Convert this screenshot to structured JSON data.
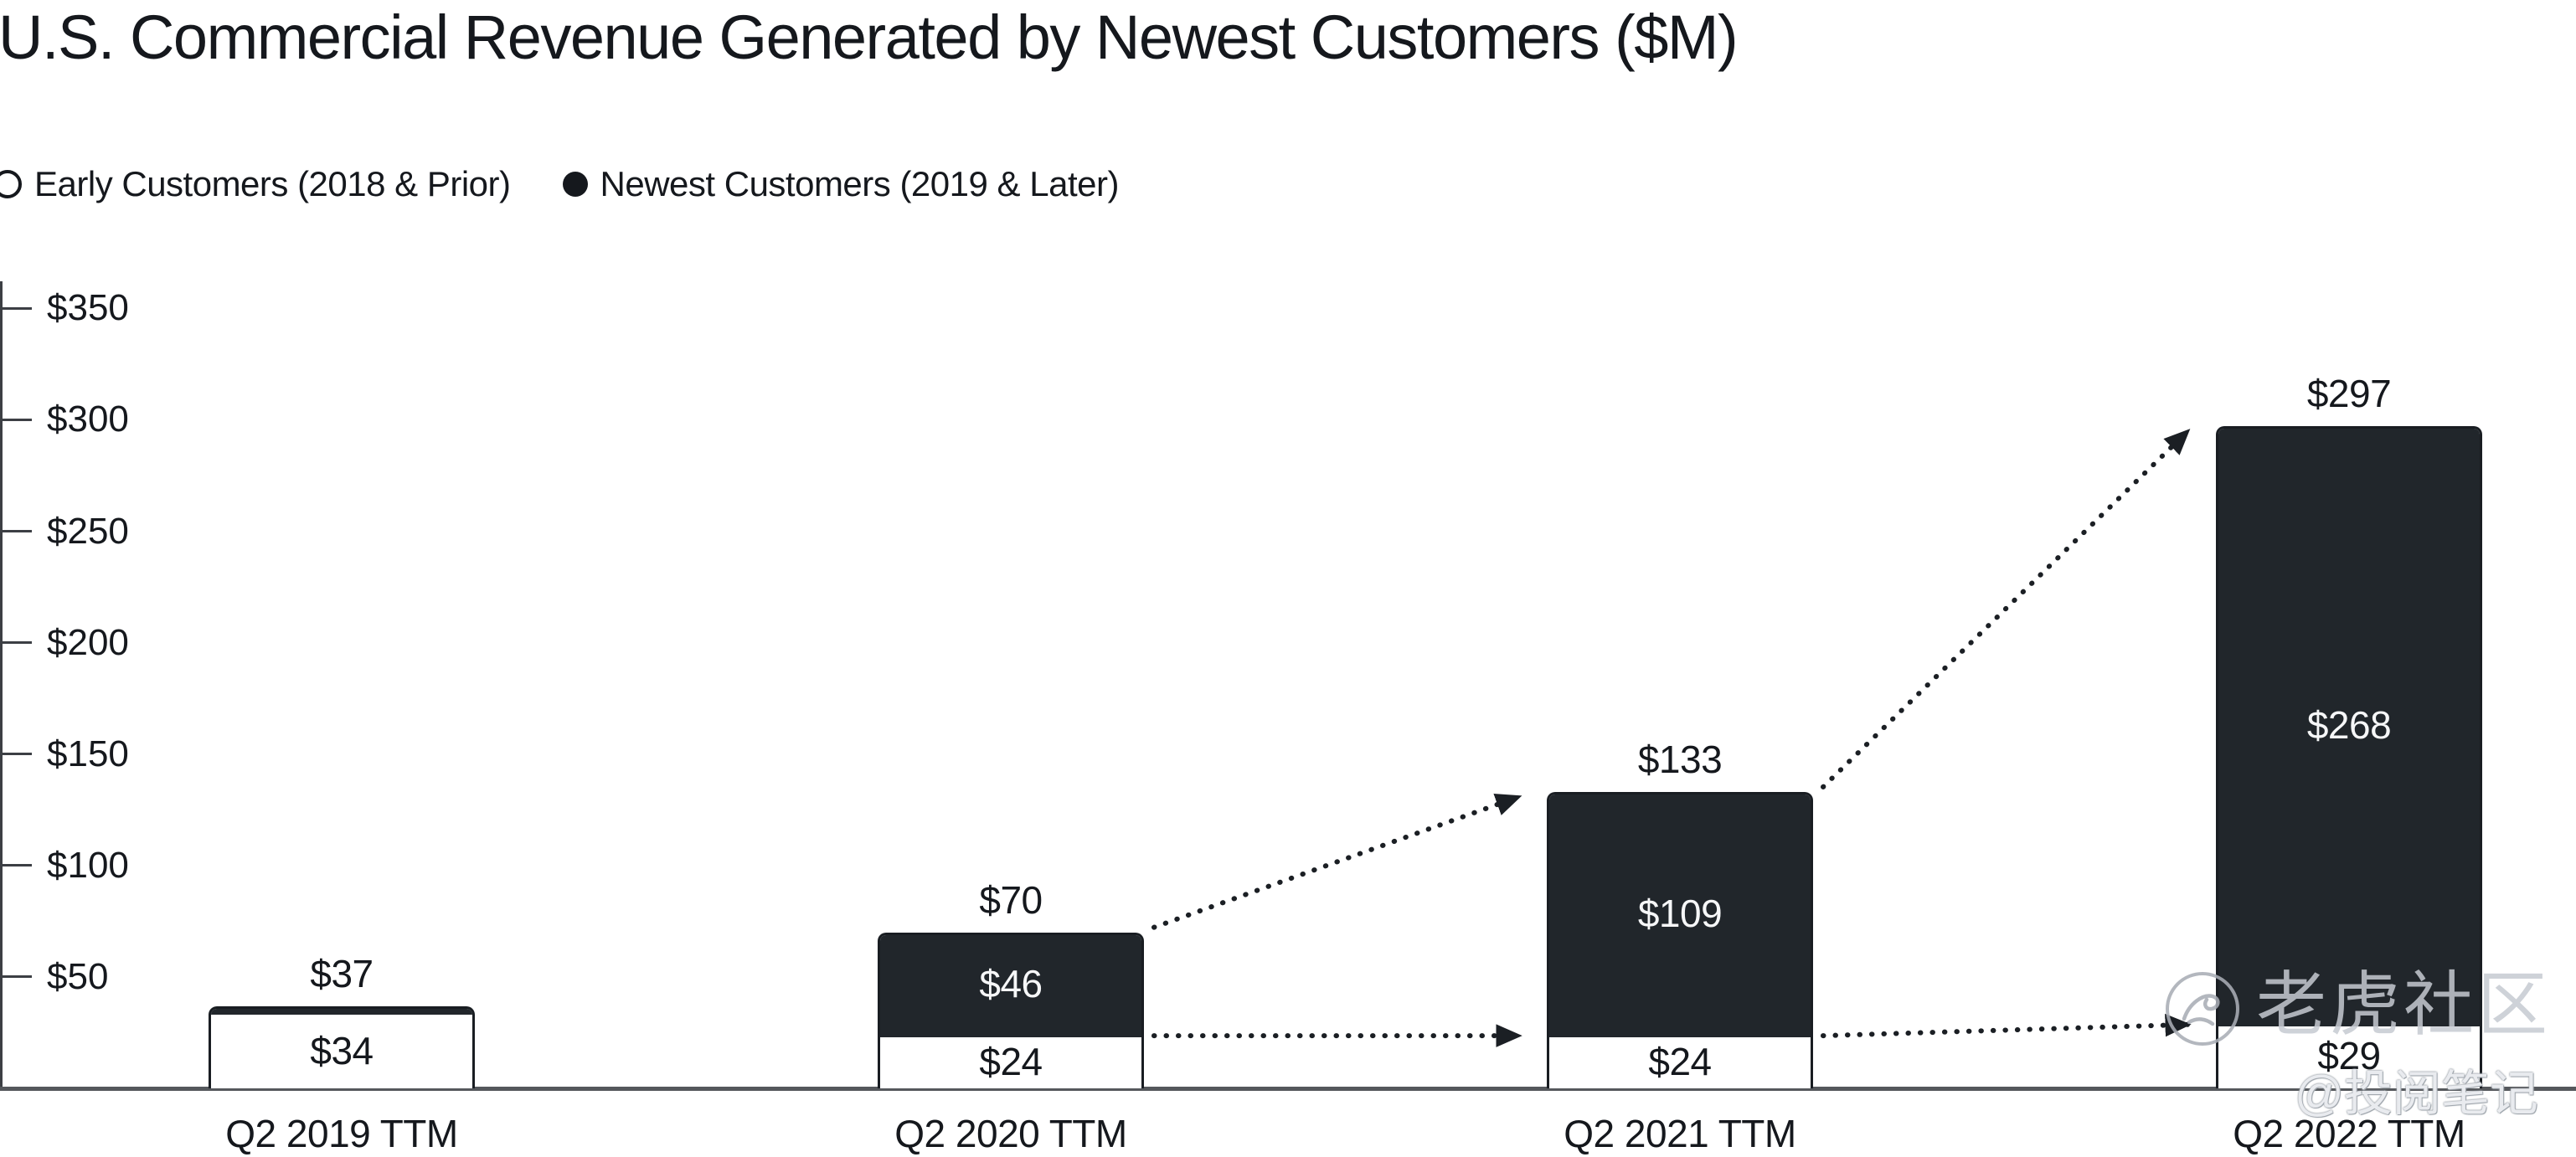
{
  "title": "U.S. Commercial Revenue Generated by Newest Customers ($M)",
  "legend": {
    "items": [
      {
        "marker": "open-circle",
        "label": "Early Customers (2018 & Prior)"
      },
      {
        "marker": "filled-circle",
        "label": "Newest Customers (2019 & Later)"
      }
    ]
  },
  "y_axis": {
    "tick_labels": [
      "$350",
      "$300",
      "$250",
      "$200",
      "$150",
      "$100",
      "$50"
    ],
    "tick_values": [
      350,
      300,
      250,
      200,
      150,
      100,
      50
    ]
  },
  "watermark": {
    "logo": "tiger-community-circle-logo",
    "community": "老虎社区",
    "handle": "@投阅笔记"
  },
  "colors": {
    "ink": "#15181d",
    "bar_dark": "#21262b",
    "bar_light": "#ffffff",
    "bar_border": "#191d22",
    "axis_line": "#55585c",
    "tick_line": "#3c3f44",
    "arrow_dot": "#1b1f24",
    "light_value_text": "#f6f7f8",
    "watermark_gray": "#c6cad1"
  },
  "chart_data": {
    "type": "bar",
    "stacked": true,
    "title": "U.S. Commercial Revenue Generated by Newest Customers ($M)",
    "categories": [
      "Q2 2019 TTM",
      "Q2 2020 TTM",
      "Q2 2021 TTM",
      "Q2 2022 TTM"
    ],
    "series": [
      {
        "name": "Early Customers (2018 & Prior)",
        "color": "#ffffff",
        "values": [
          34,
          24,
          24,
          29
        ],
        "labels": [
          "$34",
          "$24",
          "$24",
          "$29"
        ]
      },
      {
        "name": "Newest Customers (2019 & Later)",
        "color": "#21262b",
        "values": [
          3,
          46,
          109,
          268
        ],
        "labels": [
          "",
          "$46",
          "$109",
          "$268"
        ]
      }
    ],
    "totals": [
      37,
      70,
      133,
      297
    ],
    "total_labels": [
      "$37",
      "$70",
      "$133",
      "$297"
    ],
    "xlabel": "",
    "ylabel": "",
    "ylim": [
      0,
      350
    ],
    "grid": false,
    "legend_position": "top-left",
    "annotations": "Dotted arrows connect the top of the newest-customer (dark) segments and the top of the early-customer (white) segments from each bar to the next, for Q2 2020→Q2 2021 and Q2 2021→Q2 2022"
  }
}
